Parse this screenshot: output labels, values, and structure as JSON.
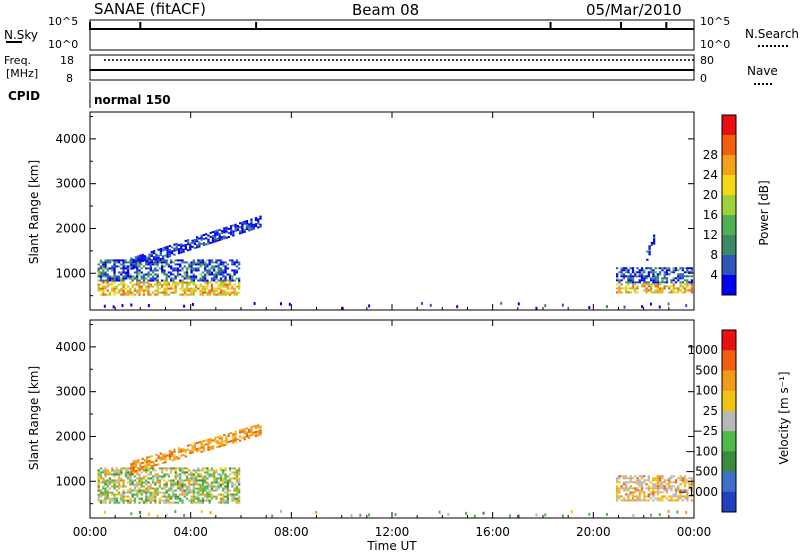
{
  "header": {
    "station": "SANAE (fitACF)",
    "beam": "Beam 08",
    "date": "05/Mar/2010"
  },
  "panels": {
    "nsky_label": "N.Sky",
    "nsky_ticks": [
      "10^5",
      "10^0"
    ],
    "nsearch_label": "N.Search",
    "nsearch_ticks": [
      "10^5",
      "10^0"
    ],
    "freq_label_1": "Freq.",
    "freq_label_2": "[MHz]",
    "freq_ticks": [
      "18",
      "8"
    ],
    "nave_label": "Nave",
    "nave_ticks": [
      "80",
      "0"
    ],
    "cpid_label": "CPID",
    "cpid_value": "normal 150"
  },
  "chart_data": [
    {
      "type": "heatmap",
      "name": "power-panel",
      "ylabel": "Slant Range [km]",
      "xlabel": "Time UT",
      "ylim": [
        180,
        4600
      ],
      "yticks": [
        "1000",
        "2000",
        "3000",
        "4000"
      ],
      "xticks": [
        "00:00",
        "04:00",
        "08:00",
        "12:00",
        "16:00",
        "20:00",
        "00:00"
      ],
      "colorbar": {
        "label": "Power [dB]",
        "ticks": [
          "4",
          "8",
          "12",
          "16",
          "20",
          "24",
          "28"
        ],
        "colors": [
          "#0000f0",
          "#2e58b8",
          "#3a8a6a",
          "#4eb052",
          "#9fd236",
          "#f3d814",
          "#f4a11a",
          "#f06010",
          "#e81010"
        ]
      },
      "echo_regions": [
        {
          "t_start": 0.3,
          "t_end": 5.9,
          "r_min": 500,
          "r_max": 1300,
          "level": "mixed"
        },
        {
          "t_start": 1.6,
          "t_end": 6.8,
          "r_min": 1200,
          "r_max": 2150,
          "level": "low"
        },
        {
          "t_start": 20.9,
          "t_end": 23.9,
          "r_min": 550,
          "r_max": 1100,
          "level": "mixed"
        },
        {
          "t_start": 22.1,
          "t_end": 22.4,
          "r_min": 1400,
          "r_max": 1800,
          "level": "low"
        }
      ]
    },
    {
      "type": "heatmap",
      "name": "velocity-panel",
      "ylabel": "Slant Range [km]",
      "xlabel": "Time UT",
      "ylim": [
        180,
        4600
      ],
      "yticks": [
        "1000",
        "2000",
        "3000",
        "4000"
      ],
      "xticks": [
        "00:00",
        "04:00",
        "08:00",
        "12:00",
        "16:00",
        "20:00",
        "00:00"
      ],
      "colorbar": {
        "label": "Velocity [m s⁻¹]",
        "ticks": [
          "1000",
          "500",
          "100",
          "25",
          "−25",
          "−100",
          "−500",
          "−1000"
        ],
        "colors": [
          "#2040c0",
          "#3a70c8",
          "#3a8a40",
          "#50b848",
          "#b8b8b8",
          "#f3c314",
          "#f49a1a",
          "#f06010",
          "#e81010"
        ]
      },
      "echo_regions": [
        {
          "t_start": 0.3,
          "t_end": 5.9,
          "r_min": 500,
          "r_max": 1300,
          "level": "green-grey"
        },
        {
          "t_start": 1.6,
          "t_end": 6.8,
          "r_min": 1300,
          "r_max": 2150,
          "level": "orange"
        },
        {
          "t_start": 20.9,
          "t_end": 23.9,
          "r_min": 550,
          "r_max": 1100,
          "level": "grey-orange"
        }
      ]
    }
  ]
}
